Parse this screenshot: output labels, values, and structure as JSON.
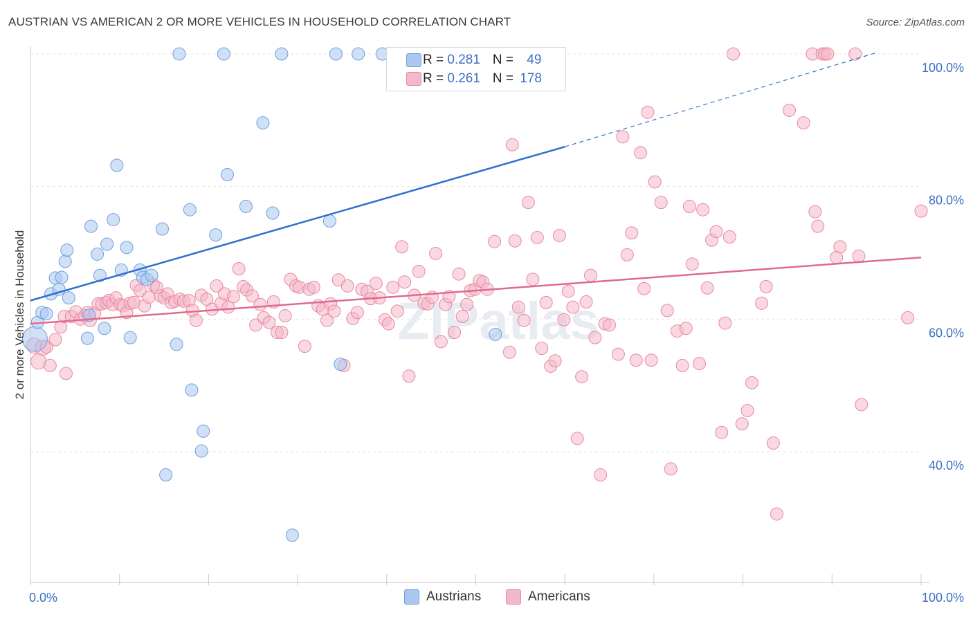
{
  "title": "AUSTRIAN VS AMERICAN 2 OR MORE VEHICLES IN HOUSEHOLD CORRELATION CHART",
  "source": "Source: ZipAtlas.com",
  "watermark": "ZIPatlas",
  "legend": {
    "rows": [
      {
        "r_label": "R = ",
        "r_value": "0.281",
        "n_label": "N = ",
        "n_value": "49",
        "color": "#aac8ef"
      },
      {
        "r_label": "R = ",
        "r_value": "0.261",
        "n_label": "N = ",
        "n_value": "178",
        "color": "#f4b8ca"
      }
    ]
  },
  "bottom_legend": [
    {
      "label": "Austrians",
      "color": "#aac8ef"
    },
    {
      "label": "Americans",
      "color": "#f4b8ca"
    }
  ],
  "chart_data": {
    "type": "scatter",
    "title": "AUSTRIAN VS AMERICAN 2 OR MORE VEHICLES IN HOUSEHOLD CORRELATION CHART",
    "xlabel": "",
    "ylabel": "2 or more Vehicles in Household",
    "xlim": [
      0,
      100
    ],
    "ylim": [
      20,
      102
    ],
    "x_tick_labels": [
      "0.0%",
      "100.0%"
    ],
    "y_ticks": [
      40,
      60,
      80,
      100
    ],
    "y_tick_labels": [
      "40.0%",
      "60.0%",
      "80.0%",
      "100.0%"
    ],
    "grid": true,
    "legend_position": "top-center",
    "series": [
      {
        "name": "Austrians",
        "color": "#6d9ee0",
        "fill": "#aac8ef",
        "trend": {
          "x0": 0,
          "y0": 62.8,
          "x1": 60,
          "y1": 86.0,
          "dashed_to_x": 95,
          "dashed_to_y": 100.2,
          "color": "#2f6fce"
        },
        "points": [
          [
            0.5,
            57.0
          ],
          [
            0.8,
            59.5
          ],
          [
            1.3,
            61.0
          ],
          [
            1.8,
            60.8
          ],
          [
            2.3,
            63.8
          ],
          [
            2.8,
            66.2
          ],
          [
            3.2,
            64.5
          ],
          [
            3.5,
            66.3
          ],
          [
            3.9,
            68.7
          ],
          [
            4.1,
            70.4
          ],
          [
            4.3,
            63.2
          ],
          [
            6.6,
            60.6
          ],
          [
            6.4,
            57.1
          ],
          [
            6.8,
            74.0
          ],
          [
            7.5,
            69.8
          ],
          [
            7.8,
            66.6
          ],
          [
            8.3,
            58.6
          ],
          [
            8.6,
            71.3
          ],
          [
            9.3,
            75.0
          ],
          [
            9.7,
            83.2
          ],
          [
            10.2,
            67.4
          ],
          [
            10.8,
            70.8
          ],
          [
            11.2,
            57.2
          ],
          [
            12.3,
            67.4
          ],
          [
            12.6,
            66.3
          ],
          [
            13.1,
            66.0
          ],
          [
            13.6,
            66.6
          ],
          [
            14.8,
            73.6
          ],
          [
            15.2,
            36.5
          ],
          [
            16.4,
            56.2
          ],
          [
            16.7,
            100.0
          ],
          [
            17.9,
            76.5
          ],
          [
            18.1,
            49.3
          ],
          [
            19.2,
            40.1
          ],
          [
            19.4,
            43.1
          ],
          [
            20.8,
            72.7
          ],
          [
            21.7,
            100.0
          ],
          [
            22.1,
            81.8
          ],
          [
            24.2,
            77.0
          ],
          [
            26.1,
            89.6
          ],
          [
            27.2,
            76.0
          ],
          [
            28.2,
            100.0
          ],
          [
            29.4,
            27.4
          ],
          [
            33.6,
            74.8
          ],
          [
            34.3,
            100.0
          ],
          [
            34.8,
            53.2
          ],
          [
            36.8,
            100.0
          ],
          [
            39.5,
            100.0
          ],
          [
            52.2,
            57.7
          ]
        ]
      },
      {
        "name": "Americans",
        "color": "#e9879f",
        "fill": "#f4b8ca",
        "trend": {
          "x0": 0,
          "y0": 59.3,
          "x1": 100,
          "y1": 69.3,
          "color": "#e06a8f"
        },
        "points": [
          [
            0.4,
            56.0
          ],
          [
            0.9,
            53.6
          ],
          [
            1.4,
            55.7
          ],
          [
            1.8,
            55.8
          ],
          [
            2.2,
            53.0
          ],
          [
            2.8,
            56.9
          ],
          [
            3.4,
            58.8
          ],
          [
            3.8,
            60.4
          ],
          [
            4.0,
            51.8
          ],
          [
            4.6,
            60.4
          ],
          [
            5.1,
            61.1
          ],
          [
            5.6,
            60.0
          ],
          [
            6.1,
            60.5
          ],
          [
            6.4,
            61.0
          ],
          [
            6.7,
            59.8
          ],
          [
            7.2,
            60.9
          ],
          [
            7.6,
            62.3
          ],
          [
            8.0,
            62.3
          ],
          [
            8.5,
            62.5
          ],
          [
            8.8,
            62.8
          ],
          [
            9.2,
            62.2
          ],
          [
            9.6,
            63.2
          ],
          [
            10.1,
            62.2
          ],
          [
            10.4,
            62.0
          ],
          [
            10.8,
            61.0
          ],
          [
            11.2,
            62.4
          ],
          [
            11.6,
            62.5
          ],
          [
            11.9,
            65.1
          ],
          [
            12.3,
            64.3
          ],
          [
            12.8,
            62.0
          ],
          [
            13.3,
            63.3
          ],
          [
            13.8,
            65.2
          ],
          [
            14.2,
            64.8
          ],
          [
            14.6,
            63.5
          ],
          [
            15.0,
            63.2
          ],
          [
            15.4,
            63.8
          ],
          [
            15.8,
            62.5
          ],
          [
            16.2,
            62.7
          ],
          [
            16.8,
            63.0
          ],
          [
            17.2,
            62.7
          ],
          [
            17.8,
            62.8
          ],
          [
            18.2,
            61.3
          ],
          [
            18.6,
            59.8
          ],
          [
            19.2,
            63.6
          ],
          [
            19.8,
            63.0
          ],
          [
            20.4,
            61.5
          ],
          [
            20.9,
            65.0
          ],
          [
            21.4,
            62.4
          ],
          [
            21.8,
            63.8
          ],
          [
            22.2,
            61.8
          ],
          [
            22.8,
            63.4
          ],
          [
            23.4,
            67.6
          ],
          [
            23.9,
            64.9
          ],
          [
            24.3,
            64.4
          ],
          [
            24.9,
            63.5
          ],
          [
            25.3,
            59.1
          ],
          [
            25.8,
            62.2
          ],
          [
            26.2,
            60.2
          ],
          [
            26.8,
            59.5
          ],
          [
            27.3,
            62.6
          ],
          [
            27.7,
            58.0
          ],
          [
            28.2,
            58.0
          ],
          [
            28.6,
            60.5
          ],
          [
            29.2,
            66.0
          ],
          [
            29.8,
            65.0
          ],
          [
            30.2,
            64.8
          ],
          [
            30.8,
            55.9
          ],
          [
            31.3,
            64.5
          ],
          [
            31.8,
            64.8
          ],
          [
            32.3,
            62.0
          ],
          [
            32.8,
            61.5
          ],
          [
            33.3,
            59.8
          ],
          [
            33.7,
            62.3
          ],
          [
            34.1,
            61.2
          ],
          [
            34.6,
            65.9
          ],
          [
            35.2,
            53.0
          ],
          [
            35.6,
            65.0
          ],
          [
            36.2,
            60.1
          ],
          [
            36.7,
            61.0
          ],
          [
            37.2,
            64.5
          ],
          [
            37.8,
            64.2
          ],
          [
            38.2,
            63.1
          ],
          [
            38.8,
            65.4
          ],
          [
            39.2,
            63.2
          ],
          [
            39.8,
            59.9
          ],
          [
            40.2,
            59.3
          ],
          [
            40.7,
            64.8
          ],
          [
            41.2,
            61.2
          ],
          [
            41.7,
            70.9
          ],
          [
            42.0,
            65.6
          ],
          [
            42.5,
            51.4
          ],
          [
            43.1,
            63.6
          ],
          [
            43.6,
            67.2
          ],
          [
            44.2,
            62.4
          ],
          [
            44.6,
            62.3
          ],
          [
            45.1,
            63.3
          ],
          [
            45.5,
            69.9
          ],
          [
            46.1,
            56.6
          ],
          [
            46.6,
            62.2
          ],
          [
            47.0,
            63.4
          ],
          [
            47.6,
            58.0
          ],
          [
            48.1,
            66.8
          ],
          [
            48.5,
            60.4
          ],
          [
            49.0,
            62.2
          ],
          [
            49.4,
            64.3
          ],
          [
            49.9,
            64.5
          ],
          [
            50.4,
            65.8
          ],
          [
            50.8,
            65.6
          ],
          [
            51.3,
            64.5
          ],
          [
            52.1,
            71.7
          ],
          [
            53.8,
            55.0
          ],
          [
            54.1,
            86.3
          ],
          [
            54.4,
            71.8
          ],
          [
            54.8,
            61.8
          ],
          [
            55.4,
            59.8
          ],
          [
            55.9,
            77.6
          ],
          [
            56.4,
            66.0
          ],
          [
            56.9,
            72.3
          ],
          [
            57.4,
            55.6
          ],
          [
            57.9,
            62.5
          ],
          [
            58.4,
            52.9
          ],
          [
            58.9,
            53.7
          ],
          [
            59.4,
            72.6
          ],
          [
            59.9,
            59.9
          ],
          [
            60.4,
            64.2
          ],
          [
            60.9,
            61.8
          ],
          [
            61.4,
            42.0
          ],
          [
            61.9,
            51.3
          ],
          [
            62.4,
            62.6
          ],
          [
            62.9,
            66.6
          ],
          [
            63.4,
            57.2
          ],
          [
            64.0,
            36.5
          ],
          [
            64.5,
            59.3
          ],
          [
            65.0,
            59.1
          ],
          [
            66.0,
            54.7
          ],
          [
            66.5,
            87.5
          ],
          [
            67.0,
            69.7
          ],
          [
            67.5,
            73.0
          ],
          [
            68.0,
            53.8
          ],
          [
            68.5,
            85.1
          ],
          [
            68.9,
            64.6
          ],
          [
            69.3,
            91.2
          ],
          [
            69.7,
            53.8
          ],
          [
            70.1,
            80.7
          ],
          [
            70.8,
            77.6
          ],
          [
            71.5,
            61.3
          ],
          [
            71.9,
            37.4
          ],
          [
            72.6,
            58.2
          ],
          [
            73.2,
            53.0
          ],
          [
            73.6,
            58.6
          ],
          [
            74.0,
            77.0
          ],
          [
            74.3,
            68.3
          ],
          [
            75.1,
            53.3
          ],
          [
            75.5,
            76.5
          ],
          [
            76.0,
            64.7
          ],
          [
            76.5,
            71.9
          ],
          [
            77.0,
            73.2
          ],
          [
            77.6,
            42.9
          ],
          [
            78.0,
            59.4
          ],
          [
            78.5,
            72.4
          ],
          [
            78.9,
            100.0
          ],
          [
            79.9,
            44.2
          ],
          [
            80.5,
            46.2
          ],
          [
            81.0,
            50.4
          ],
          [
            82.1,
            62.4
          ],
          [
            82.6,
            64.9
          ],
          [
            83.4,
            41.3
          ],
          [
            83.8,
            30.6
          ],
          [
            85.2,
            91.5
          ],
          [
            86.8,
            89.6
          ],
          [
            87.8,
            100.0
          ],
          [
            88.1,
            76.2
          ],
          [
            88.4,
            74.0
          ],
          [
            88.9,
            100.0
          ],
          [
            89.2,
            100.0
          ],
          [
            89.5,
            100.0
          ],
          [
            90.5,
            69.3
          ],
          [
            90.9,
            70.9
          ],
          [
            92.6,
            100.0
          ],
          [
            93.0,
            69.5
          ],
          [
            93.3,
            47.1
          ],
          [
            98.5,
            60.2
          ],
          [
            100.0,
            76.3
          ]
        ]
      }
    ]
  }
}
